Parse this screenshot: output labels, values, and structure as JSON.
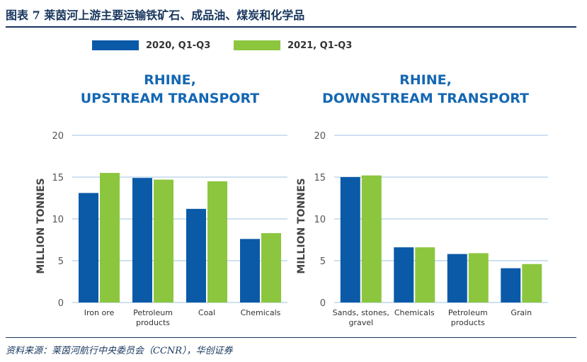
{
  "figure": {
    "title": "图表 7   莱茵河上游主要运输铁矿石、成品油、煤炭和化学品",
    "source": "资料来源：莱茵河航行中央委员会（CCNR），华创证券"
  },
  "colors": {
    "series_2020": "#0a5aa8",
    "series_2021": "#8cc63f",
    "panel_title": "#1467b3",
    "grid": "#9fc3e0",
    "axis_text": "#555555"
  },
  "chart_data": [
    {
      "type": "bar",
      "title": "RHINE,\nUPSTREAM TRANSPORT",
      "title_lines": [
        "RHINE,",
        "UPSTREAM TRANSPORT"
      ],
      "ylabel": "MILLION TONNES",
      "xlabel": "",
      "ylim": [
        0,
        20
      ],
      "yticks": [
        0,
        5,
        10,
        15,
        20
      ],
      "grid": true,
      "legend": "top",
      "categories": [
        "Iron ore",
        "Petroleum\nproducts",
        "Coal",
        "Chemicals"
      ],
      "series": [
        {
          "name": "2020, Q1-Q3",
          "values": [
            13.1,
            14.9,
            11.2,
            7.6
          ]
        },
        {
          "name": "2021, Q1-Q3",
          "values": [
            15.5,
            14.7,
            14.5,
            8.3
          ]
        }
      ]
    },
    {
      "type": "bar",
      "title": "RHINE,\nDOWNSTREAM TRANSPORT",
      "title_lines": [
        "RHINE,",
        "DOWNSTREAM TRANSPORT"
      ],
      "ylabel": "MILLION TONNES",
      "xlabel": "",
      "ylim": [
        0,
        20
      ],
      "yticks": [
        0,
        5,
        10,
        15,
        20
      ],
      "grid": true,
      "legend": "top",
      "categories": [
        "Sands, stones,\ngravel",
        "Chemicals",
        "Petroleum\nproducts",
        "Grain"
      ],
      "series": [
        {
          "name": "2020, Q1-Q3",
          "values": [
            15.0,
            6.6,
            5.8,
            4.1
          ]
        },
        {
          "name": "2021, Q1-Q3",
          "values": [
            15.2,
            6.6,
            5.9,
            4.6
          ]
        }
      ]
    }
  ]
}
